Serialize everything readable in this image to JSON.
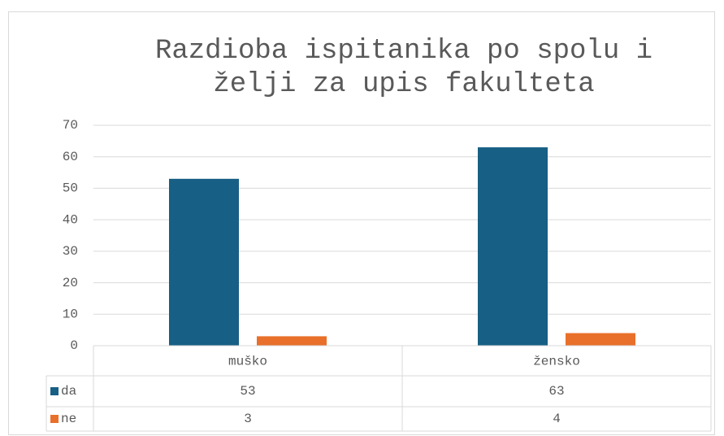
{
  "chart_data": {
    "type": "bar",
    "title": [
      "Razdioba ispitanika po spolu i",
      "želji za upis fakulteta"
    ],
    "categories": [
      "muško",
      "žensko"
    ],
    "series": [
      {
        "name": "da",
        "color": "#175f85",
        "values": [
          53,
          63
        ]
      },
      {
        "name": "ne",
        "color": "#e8702a",
        "values": [
          3,
          4
        ]
      }
    ],
    "ylim": [
      0,
      70
    ],
    "yticks": [
      0,
      10,
      20,
      30,
      40,
      50,
      60,
      70
    ],
    "grid": true,
    "data_table": true
  }
}
